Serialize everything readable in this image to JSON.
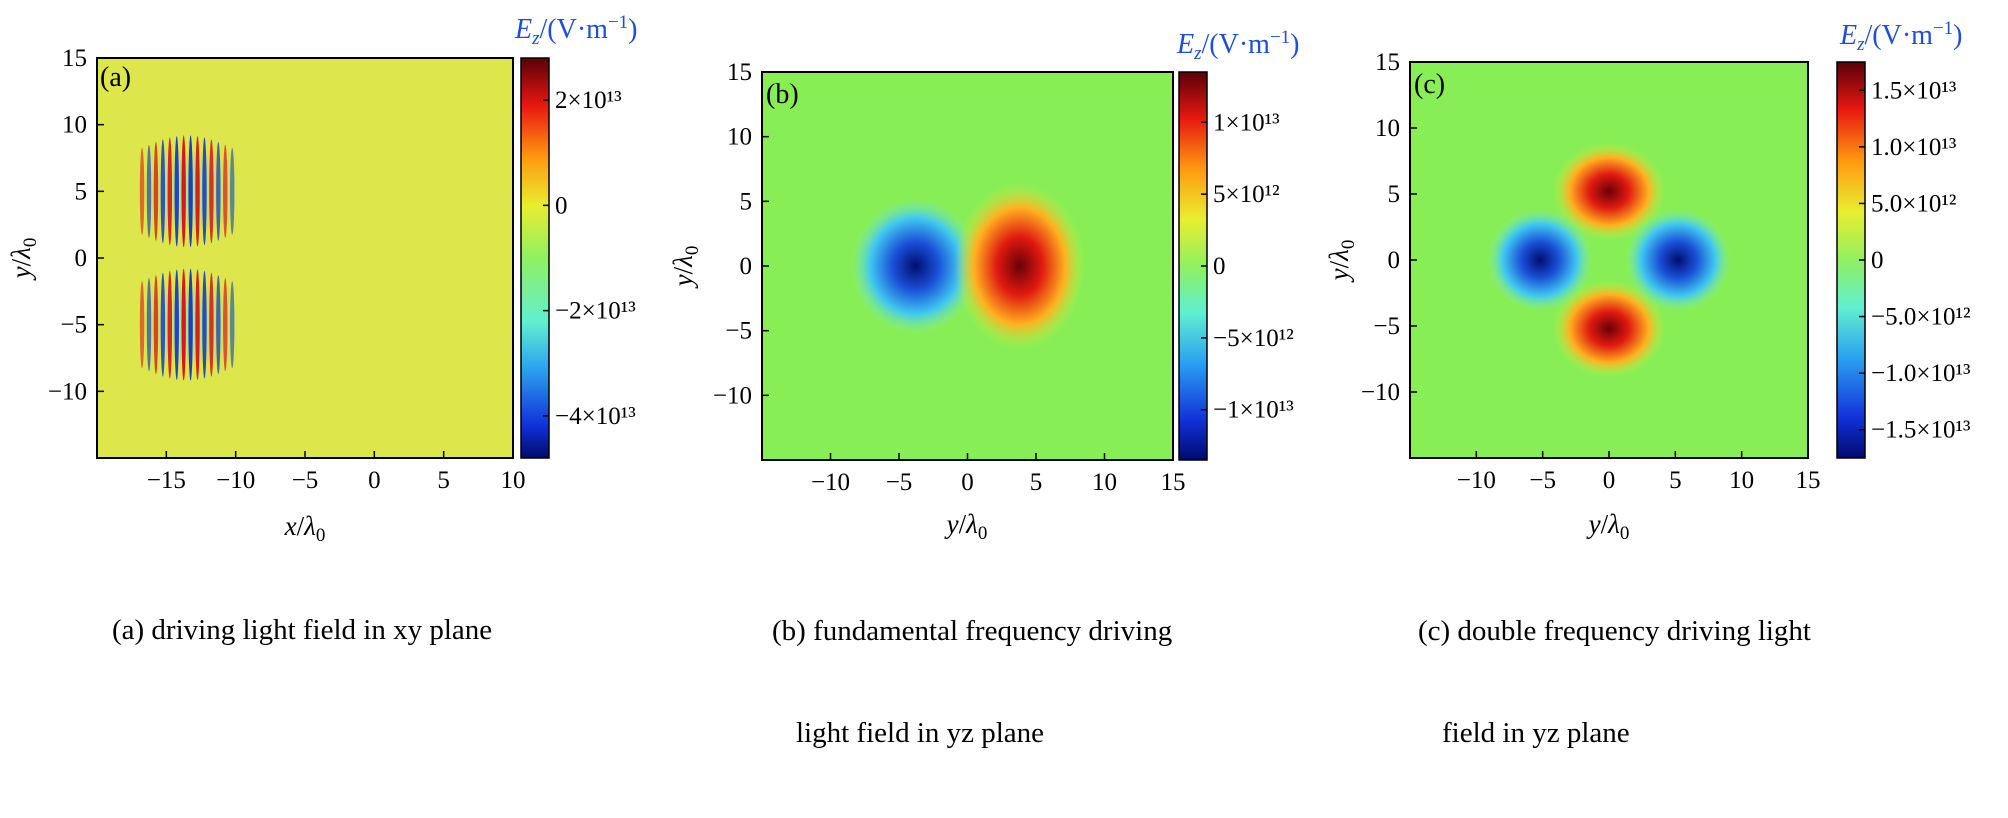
{
  "colors": {
    "field_neutral_a": "#dde64a",
    "field_neutral_b": "#88ee55",
    "positive": "#c8101a",
    "negative": "#1848c8",
    "colorbar_title": "#1f4fd6"
  },
  "colorbar_title": {
    "symbol": "E",
    "subscript": "z",
    "unit": "/(V·m⁻¹)"
  },
  "panels": [
    {
      "id": "a",
      "letter": "(a)",
      "xlabel": "x/λ0",
      "ylabel": "y/λ0",
      "caption_lines": [
        "(a) driving light field in xy plane"
      ],
      "chart_data": {
        "type": "heatmap",
        "x_axis": {
          "range": [
            -20,
            10
          ],
          "ticks": [
            -15,
            -10,
            -5,
            0,
            5,
            10
          ]
        },
        "y_axis": {
          "range": [
            -15,
            15
          ],
          "ticks": [
            -10,
            -5,
            0,
            5,
            10,
            15
          ]
        },
        "colorbar": {
          "range": [
            -48000000000000.0,
            28000000000000.0
          ],
          "ticks": [
            {
              "value": 20000000000000.0,
              "label": "2×10¹³"
            },
            {
              "value": 0,
              "label": "0"
            },
            {
              "value": -20000000000000.0,
              "label": "−2×10¹³"
            },
            {
              "value": -40000000000000.0,
              "label": "−4×10¹³"
            }
          ]
        },
        "features": [
          {
            "kind": "oscillating-lobes",
            "x_range": [
              -17,
              -10
            ],
            "y_centers": [
              5,
              -5
            ],
            "y_halfwidth": 4.2
          }
        ]
      }
    },
    {
      "id": "b",
      "letter": "(b)",
      "xlabel": "y/λ0",
      "ylabel": "y/λ0",
      "caption_lines": [
        "(b) fundamental frequency driving",
        "light field in yz plane"
      ],
      "chart_data": {
        "type": "heatmap",
        "x_axis": {
          "range": [
            -15,
            15
          ],
          "ticks": [
            -10,
            -5,
            0,
            5,
            10,
            15
          ]
        },
        "y_axis": {
          "range": [
            -15,
            15
          ],
          "ticks": [
            -10,
            -5,
            0,
            5,
            10,
            15
          ]
        },
        "colorbar": {
          "range": [
            -13500000000000.0,
            13500000000000.0
          ],
          "ticks": [
            {
              "value": 10000000000000.0,
              "label": "1×10¹³"
            },
            {
              "value": 5000000000000.0,
              "label": "5×10¹²"
            },
            {
              "value": 0,
              "label": "0"
            },
            {
              "value": -5000000000000.0,
              "label": "−5×10¹²"
            },
            {
              "value": -10000000000000.0,
              "label": "−1×10¹³"
            }
          ]
        },
        "features": [
          {
            "kind": "lobe",
            "sign": "negative",
            "x": -3.8,
            "y": 0,
            "rx": 3.8,
            "ry": 4.6
          },
          {
            "kind": "lobe",
            "sign": "positive",
            "x": 3.8,
            "y": 0,
            "rx": 3.8,
            "ry": 5.6
          }
        ]
      }
    },
    {
      "id": "c",
      "letter": "(c)",
      "xlabel": "y/λ0",
      "ylabel": "y/λ0",
      "caption_lines": [
        "(c) double frequency driving light",
        "field in yz plane"
      ],
      "chart_data": {
        "type": "heatmap",
        "x_axis": {
          "range": [
            -15,
            15
          ],
          "ticks": [
            -10,
            -5,
            0,
            5,
            10,
            15
          ]
        },
        "y_axis": {
          "range": [
            -15,
            15
          ],
          "ticks": [
            -10,
            -5,
            0,
            5,
            10,
            15
          ]
        },
        "colorbar": {
          "range": [
            -17500000000000.0,
            17500000000000.0
          ],
          "ticks": [
            {
              "value": 15000000000000.0,
              "label": "1.5×10¹³"
            },
            {
              "value": 10000000000000.0,
              "label": "1.0×10¹³"
            },
            {
              "value": 5000000000000.0,
              "label": "5.0×10¹²"
            },
            {
              "value": 0,
              "label": "0"
            },
            {
              "value": -5000000000000.0,
              "label": "−5.0×10¹²"
            },
            {
              "value": -10000000000000.0,
              "label": "−1.0×10¹³"
            },
            {
              "value": -15000000000000.0,
              "label": "−1.5×10¹³"
            }
          ]
        },
        "features": [
          {
            "kind": "lobe",
            "sign": "positive",
            "x": 0,
            "y": 5.2,
            "rx": 3.4,
            "ry": 3.2
          },
          {
            "kind": "lobe",
            "sign": "positive",
            "x": 0,
            "y": -5.2,
            "rx": 3.4,
            "ry": 3.2
          },
          {
            "kind": "lobe",
            "sign": "negative",
            "x": -5.2,
            "y": 0,
            "rx": 3.2,
            "ry": 3.4
          },
          {
            "kind": "lobe",
            "sign": "negative",
            "x": 5.2,
            "y": 0,
            "rx": 3.2,
            "ry": 3.4
          }
        ]
      }
    }
  ]
}
